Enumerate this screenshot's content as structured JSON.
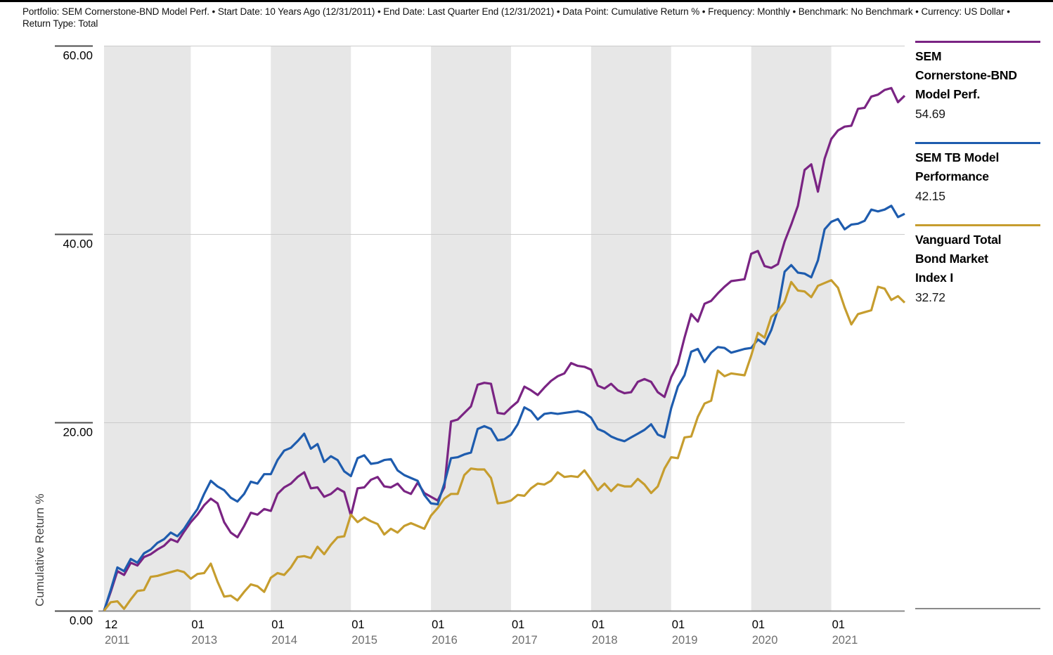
{
  "header": {
    "settings_line": "Portfolio: SEM Cornerstone-BND Model Perf. • Start Date: 10 Years Ago (12/31/2011) • End Date: Last Quarter End (12/31/2021) • Data Point: Cumulative Return % • Frequency: Monthly • Benchmark: No Benchmark • Currency: US Dollar • Return Type: Total"
  },
  "legend": {
    "entries": [
      {
        "label": "SEM Cornerstone-BND Model Perf.",
        "value": "54.69",
        "color": "#7A2483"
      },
      {
        "label": "SEM TB Model Performance",
        "value": "42.15",
        "color": "#1E5CAE"
      },
      {
        "label": "Vanguard Total Bond Market Index I",
        "value": "32.72",
        "color": "#C69D2E"
      }
    ]
  },
  "chart_data": {
    "type": "line",
    "title": "",
    "xlabel": "",
    "ylabel": "Cumulative Return %",
    "ylim": [
      0,
      60
    ],
    "frequency": "Monthly",
    "x_range": [
      "12/2011",
      "12/2021"
    ],
    "grid": "horizontal",
    "legend_position": "right",
    "colors": {
      "band": "#E7E7E7",
      "grid": "#CBCBCB",
      "axis": "#8C8C8C",
      "y_tick_mark": "#4D4D4D",
      "month_label": "#000000",
      "year_label": "#6E6E6E",
      "y_label": "#000000",
      "axis_title": "#444444"
    },
    "y_ticks": [
      {
        "v": 0,
        "label": "0.00"
      },
      {
        "v": 20,
        "label": "20.00"
      },
      {
        "v": 40,
        "label": "40.00"
      },
      {
        "v": 60,
        "label": "60.00"
      }
    ],
    "x_ticks": [
      {
        "m": 0,
        "month": "12",
        "year": "2011"
      },
      {
        "m": 13,
        "month": "01",
        "year": "2013"
      },
      {
        "m": 25,
        "month": "01",
        "year": "2014"
      },
      {
        "m": 37,
        "month": "01",
        "year": "2015"
      },
      {
        "m": 49,
        "month": "01",
        "year": "2016"
      },
      {
        "m": 61,
        "month": "01",
        "year": "2017"
      },
      {
        "m": 73,
        "month": "01",
        "year": "2018"
      },
      {
        "m": 85,
        "month": "01",
        "year": "2019"
      },
      {
        "m": 97,
        "month": "01",
        "year": "2020"
      },
      {
        "m": 109,
        "month": "01",
        "year": "2021"
      }
    ],
    "shaded_month_ranges": [
      [
        0,
        13
      ],
      [
        25,
        37
      ],
      [
        49,
        61
      ],
      [
        73,
        85
      ],
      [
        97,
        109
      ]
    ],
    "months_total": 120,
    "series": [
      {
        "name": "SEM Cornerstone-BND Model Perf.",
        "color": "#7A2483",
        "final_value": 54.69,
        "values": [
          0.0,
          2.0,
          4.2,
          3.8,
          5.1,
          4.8,
          5.7,
          6.0,
          6.5,
          6.9,
          7.6,
          7.3,
          8.4,
          9.4,
          10.2,
          11.2,
          11.9,
          11.4,
          9.4,
          8.3,
          7.8,
          9.0,
          10.4,
          10.2,
          10.8,
          10.6,
          12.4,
          13.1,
          13.5,
          14.2,
          14.7,
          13.0,
          13.1,
          12.1,
          12.4,
          13.0,
          12.6,
          10.1,
          13.0,
          13.1,
          13.9,
          14.2,
          13.2,
          13.1,
          13.5,
          12.7,
          12.4,
          13.6,
          12.5,
          12.1,
          11.7,
          13.1,
          20.1,
          20.3,
          21.0,
          21.7,
          24.0,
          24.2,
          24.1,
          21.0,
          20.9,
          21.6,
          22.2,
          23.8,
          23.4,
          22.9,
          23.7,
          24.4,
          24.9,
          25.2,
          26.3,
          26.0,
          25.9,
          25.6,
          23.9,
          23.6,
          24.1,
          23.4,
          23.1,
          23.2,
          24.3,
          24.6,
          24.3,
          23.2,
          22.7,
          24.8,
          26.2,
          29.0,
          31.5,
          30.7,
          32.6,
          32.9,
          33.7,
          34.4,
          35.0,
          35.1,
          35.2,
          37.9,
          38.2,
          36.6,
          36.4,
          36.8,
          39.2,
          41.0,
          43.0,
          46.8,
          47.4,
          44.5,
          48.0,
          50.1,
          51.0,
          51.4,
          51.5,
          53.3,
          53.4,
          54.6,
          54.8,
          55.3,
          55.5,
          54.0,
          54.69
        ]
      },
      {
        "name": "SEM TB Model Performance",
        "color": "#1E5CAE",
        "final_value": 42.15,
        "values": [
          0.0,
          2.2,
          4.6,
          4.2,
          5.5,
          5.1,
          6.1,
          6.5,
          7.2,
          7.6,
          8.3,
          7.9,
          8.7,
          9.8,
          10.8,
          12.4,
          13.8,
          13.2,
          12.8,
          12.0,
          11.6,
          12.4,
          13.7,
          13.5,
          14.5,
          14.5,
          16.0,
          17.0,
          17.3,
          18.0,
          18.8,
          17.2,
          17.7,
          15.8,
          16.4,
          16.0,
          14.8,
          14.3,
          16.2,
          16.5,
          15.6,
          15.7,
          16.0,
          16.1,
          14.9,
          14.4,
          14.1,
          13.8,
          12.3,
          11.4,
          11.3,
          13.5,
          16.2,
          16.3,
          16.6,
          16.8,
          19.3,
          19.6,
          19.3,
          18.1,
          18.2,
          18.7,
          19.8,
          21.6,
          21.2,
          20.3,
          20.9,
          21.0,
          20.9,
          21.0,
          21.1,
          21.2,
          21.0,
          20.5,
          19.3,
          19.0,
          18.5,
          18.2,
          18.0,
          18.4,
          18.8,
          19.2,
          19.8,
          18.7,
          18.4,
          21.5,
          23.8,
          25.0,
          27.5,
          27.8,
          26.4,
          27.4,
          28.0,
          27.9,
          27.4,
          27.6,
          27.8,
          27.9,
          28.8,
          28.3,
          29.8,
          32.0,
          36.0,
          36.7,
          35.9,
          35.8,
          35.4,
          37.2,
          40.5,
          41.3,
          41.6,
          40.5,
          41.0,
          41.1,
          41.4,
          42.6,
          42.4,
          42.6,
          43.0,
          41.8,
          42.15
        ]
      },
      {
        "name": "Vanguard Total Bond Market Index I",
        "color": "#C69D2E",
        "final_value": 32.72,
        "values": [
          0.0,
          0.9,
          1.0,
          0.2,
          1.2,
          2.1,
          2.2,
          3.6,
          3.7,
          3.9,
          4.1,
          4.3,
          4.1,
          3.4,
          3.9,
          4.0,
          5.0,
          3.1,
          1.5,
          1.6,
          1.1,
          2.0,
          2.8,
          2.6,
          2.0,
          3.5,
          4.0,
          3.8,
          4.6,
          5.7,
          5.8,
          5.6,
          6.8,
          6.0,
          7.0,
          7.8,
          7.9,
          10.2,
          9.4,
          9.9,
          9.5,
          9.2,
          8.1,
          8.7,
          8.3,
          9.0,
          9.3,
          9.0,
          8.7,
          10.1,
          10.9,
          11.9,
          12.4,
          12.4,
          14.4,
          15.1,
          15.0,
          15.0,
          14.1,
          11.4,
          11.5,
          11.7,
          12.3,
          12.2,
          13.0,
          13.5,
          13.4,
          13.8,
          14.7,
          14.2,
          14.3,
          14.2,
          14.9,
          13.9,
          12.8,
          13.5,
          12.7,
          13.4,
          13.2,
          13.2,
          14.0,
          13.4,
          12.5,
          13.2,
          15.1,
          16.3,
          16.2,
          18.4,
          18.5,
          20.6,
          22.0,
          22.3,
          25.5,
          24.9,
          25.2,
          25.1,
          25.0,
          27.1,
          29.5,
          29.0,
          31.2,
          31.8,
          32.8,
          34.9,
          34.0,
          33.9,
          33.3,
          34.5,
          34.8,
          35.1,
          34.3,
          32.2,
          30.4,
          31.5,
          31.7,
          31.9,
          34.4,
          34.2,
          33.0,
          33.4,
          32.72
        ]
      }
    ]
  }
}
